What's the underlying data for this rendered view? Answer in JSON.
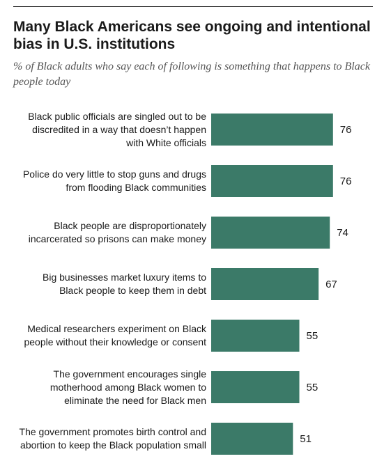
{
  "chart_data": {
    "type": "bar",
    "orientation": "horizontal",
    "title": "Many Black Americans see ongoing and intentional bias in U.S. institutions",
    "subtitle": "% of Black adults who say each of following is something that happens to Black people today",
    "categories": [
      "Black public officials are singled out to be discredited in a way that doesn’t happen with White officials",
      "Police do very little to stop guns and drugs from flooding Black communities",
      "Black people are disproportionately incarcerated so prisons can make money",
      "Big businesses market luxury items to Black people to keep them in debt",
      "Medical researchers experiment on Black people without their knowledge or consent",
      "The government encourages single motherhood among Black women to eliminate the need for Black men",
      "The government promotes birth control and abortion to keep the Black population small"
    ],
    "label_lines": [
      [
        "Black public officials are singled out to be",
        "discredited in a way that doesn’t happen",
        "with White officials"
      ],
      [
        "Police do very little to stop guns and drugs",
        "from flooding Black communities"
      ],
      [
        "Black people are disproportionately",
        "incarcerated so prisons can make money"
      ],
      [
        "Big businesses market luxury items to",
        "Black people to keep them in debt"
      ],
      [
        "Medical researchers experiment on Black",
        "people without their knowledge or consent"
      ],
      [
        "The government encourages single",
        "motherhood among Black women to",
        "eliminate the need for Black men"
      ],
      [
        "The government promotes birth control and",
        "abortion to keep the Black population small"
      ]
    ],
    "values": [
      76,
      76,
      74,
      67,
      55,
      55,
      51
    ],
    "data_labels": [
      "76",
      "76",
      "74",
      "67",
      "55",
      "55",
      "51"
    ],
    "xlim": [
      0,
      100
    ],
    "grid": false,
    "legend": "none",
    "colors": {
      "bar": "#3b7a68",
      "text": "#1a1a1a",
      "subtitle": "#555555",
      "rule": "#222222"
    }
  }
}
